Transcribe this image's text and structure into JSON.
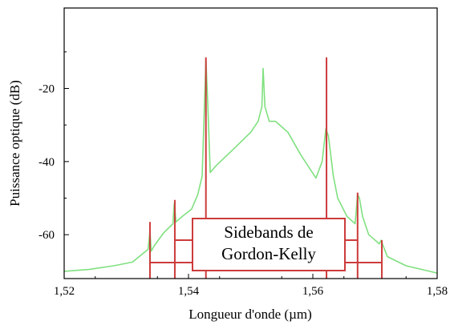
{
  "chart_data": {
    "type": "line",
    "title": "",
    "xlabel": "Longueur d'onde (µm)",
    "ylabel": "Puissance optique (dB)",
    "xlim": [
      1.52,
      1.58
    ],
    "ylim": [
      -72,
      2
    ],
    "x_ticks": [
      1.52,
      1.54,
      1.56,
      1.58
    ],
    "x_tick_labels": [
      "1,52",
      "1,54",
      "1,56",
      "1,58"
    ],
    "y_ticks": [
      -20,
      -40,
      -60
    ],
    "y_tick_labels": [
      "-20",
      "-40",
      "-60"
    ],
    "grid": false,
    "legend": "none",
    "series": [
      {
        "color": "#80e080",
        "x": [
          1.52,
          1.524,
          1.528,
          1.531,
          1.5335,
          1.5338,
          1.534,
          1.5345,
          1.536,
          1.5375,
          1.5377,
          1.538,
          1.539,
          1.5405,
          1.5415,
          1.5422,
          1.5428,
          1.5431,
          1.5435,
          1.5445,
          1.547,
          1.55,
          1.5512,
          1.5518,
          1.552,
          1.5523,
          1.553,
          1.554,
          1.556,
          1.558,
          1.5605,
          1.5615,
          1.5621,
          1.5625,
          1.5633,
          1.564,
          1.5655,
          1.5668,
          1.5672,
          1.5675,
          1.568,
          1.569,
          1.5707,
          1.571,
          1.5713,
          1.572,
          1.575,
          1.58
        ],
        "y": [
          -70.0,
          -69.5,
          -68.5,
          -67.5,
          -64.0,
          -59.0,
          -64.5,
          -63.0,
          -59.5,
          -57.0,
          -51.5,
          -56.5,
          -55.0,
          -53.0,
          -49.0,
          -44.0,
          -12.0,
          -24.0,
          -43.0,
          -41.0,
          -37.0,
          -32.0,
          -29.0,
          -25.0,
          -14.5,
          -25.0,
          -29.0,
          -29.0,
          -32.0,
          -38.0,
          -44.5,
          -40.0,
          -31.0,
          -33.0,
          -44.0,
          -50.0,
          -55.0,
          -57.0,
          -49.0,
          -50.0,
          -55.0,
          -60.0,
          -62.5,
          -61.5,
          -63.0,
          -66.0,
          -68.5,
          -70.5
        ]
      },
      {
        "color": "#cc3b3b",
        "x": [
          1.5338,
          1.5338,
          1.5338,
          1.5378,
          1.5378,
          1.5378,
          1.5428,
          1.5428,
          1.5428,
          1.5622,
          1.5622,
          1.5622,
          1.5672,
          1.5672,
          1.5672,
          1.5711,
          1.5711,
          1.5711
        ],
        "y": [
          -72.0,
          -56.5,
          -72.0,
          -72.0,
          -50.5,
          -72.0,
          -72.0,
          -11.5,
          -72.0,
          -72.0,
          -11.5,
          -72.0,
          -72.0,
          -48.5,
          -72.0,
          -72.0,
          -61.5,
          -72.0
        ]
      }
    ],
    "annotation": {
      "lines": [
        "Sidebands de",
        "Gordon-Kelly"
      ],
      "color": "#cc3b3b"
    }
  }
}
